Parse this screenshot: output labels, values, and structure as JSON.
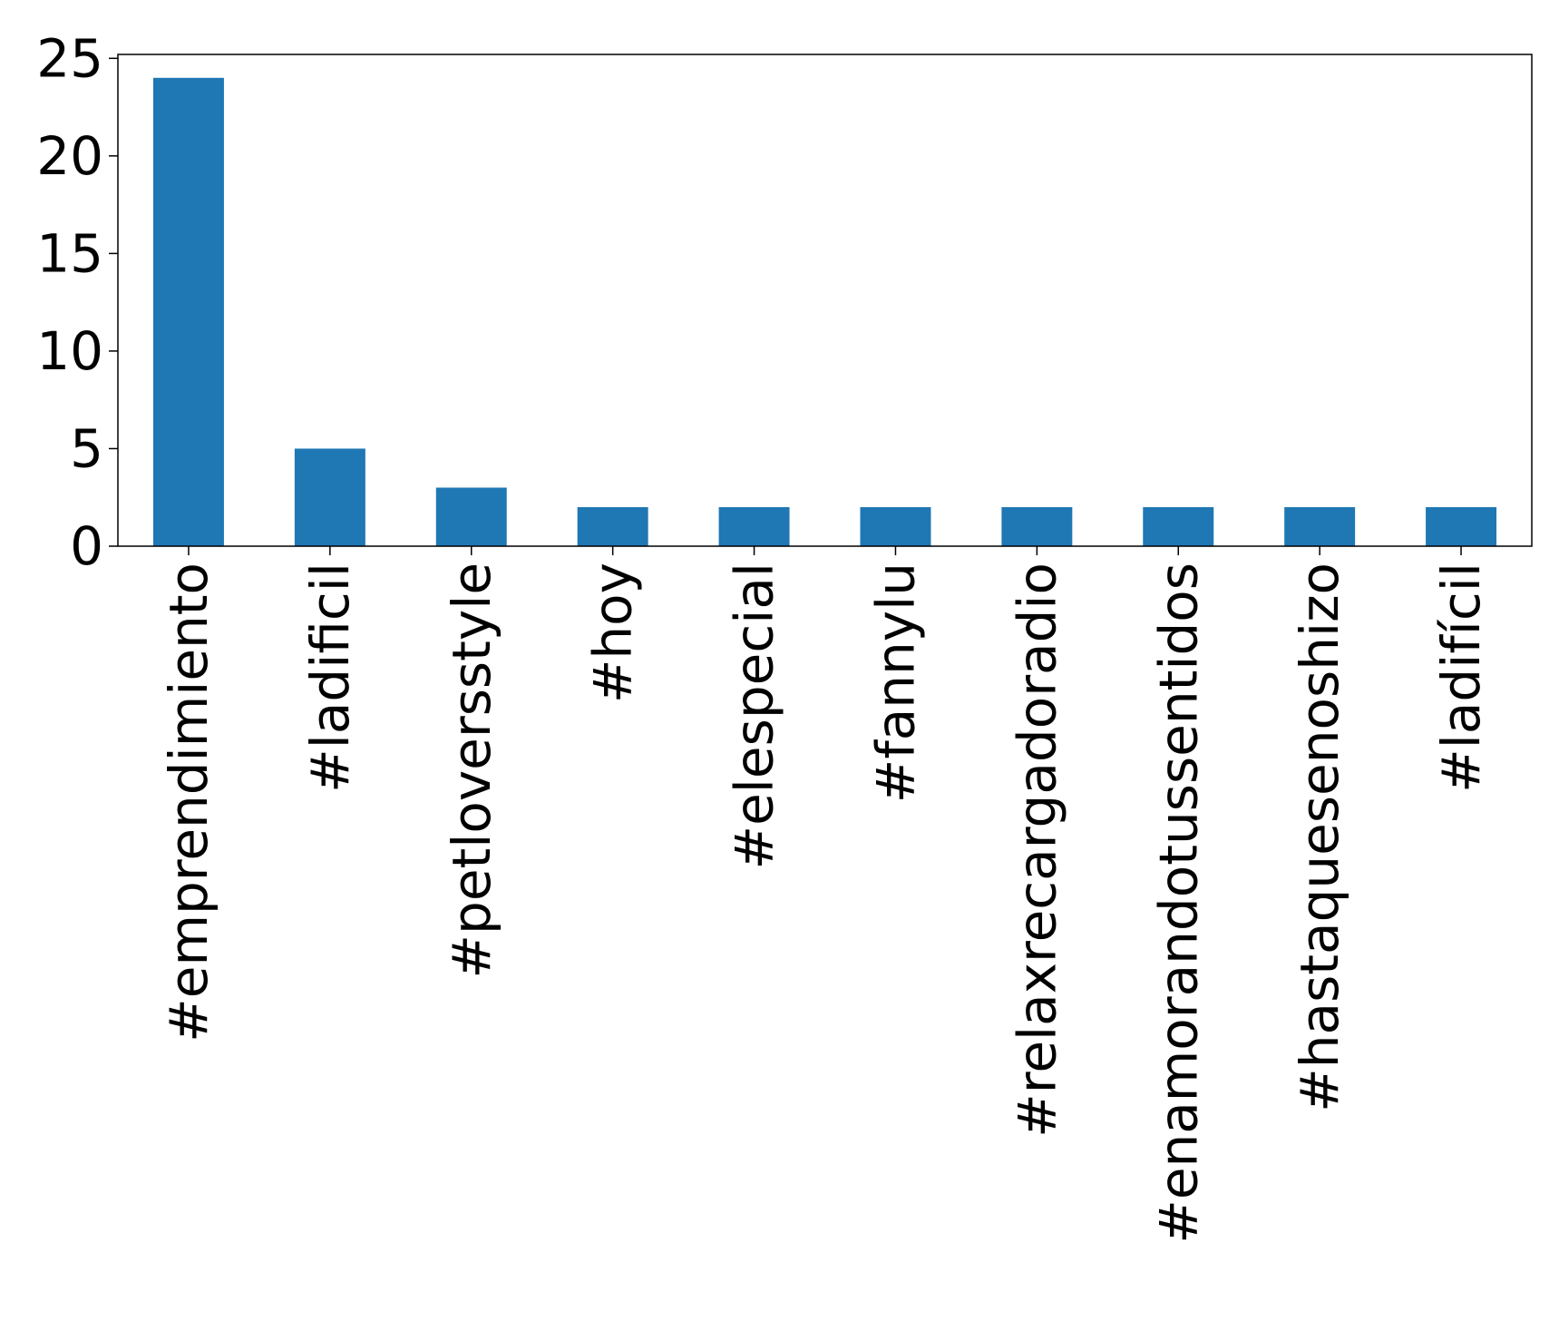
{
  "chart_data": {
    "type": "bar",
    "categories": [
      "#emprendimiento",
      "#ladificil",
      "#petloversstyle",
      "#hoy",
      "#elespecial",
      "#fannylu",
      "#relaxrecargadoradio",
      "#enamorandotussentidos",
      "#hastaquesenoshizo",
      "#ladifícil"
    ],
    "values": [
      24,
      5,
      3,
      2,
      2,
      2,
      2,
      2,
      2,
      2
    ],
    "title": "",
    "xlabel": "",
    "ylabel": "",
    "ylim": [
      0,
      25.2
    ],
    "yticks": [
      0,
      5,
      10,
      15,
      20,
      25
    ],
    "grid": false,
    "colors": {
      "bar": "#1f77b4",
      "axis": "#000000"
    }
  }
}
